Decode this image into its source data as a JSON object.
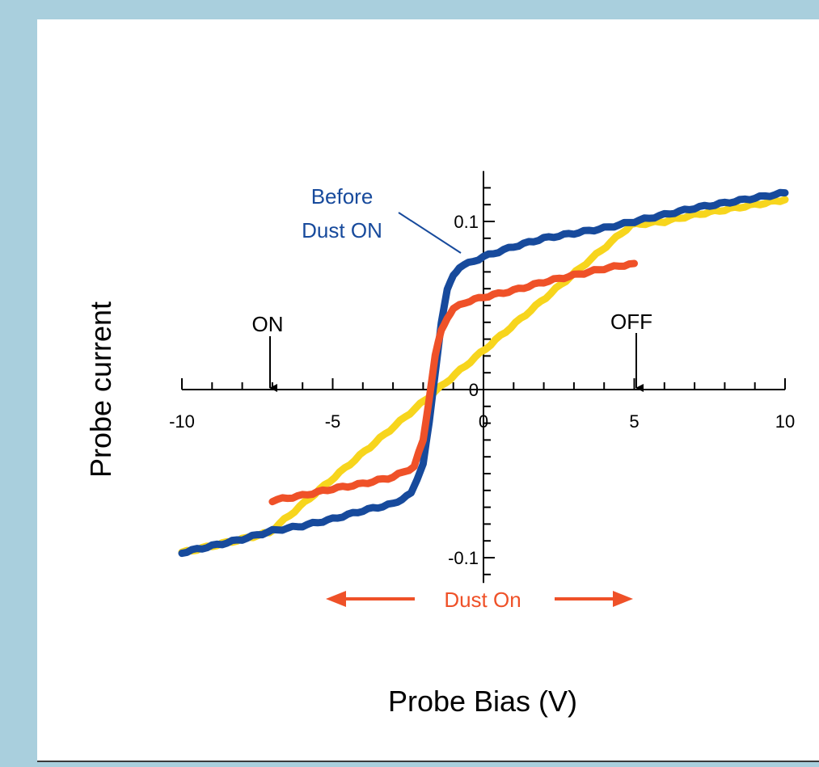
{
  "chart_data": {
    "type": "line",
    "xlabel": "Probe Bias (V)",
    "ylabel": "Probe current",
    "xlim": [
      -10,
      10
    ],
    "ylim": [
      -0.115,
      0.13
    ],
    "x_ticks": [
      -10,
      -5,
      0,
      5,
      10
    ],
    "x_tick_labels": [
      "-10",
      "-5",
      "0",
      "5",
      "10"
    ],
    "y_ticks": [
      -0.1,
      0,
      0.1
    ],
    "y_tick_labels": [
      "-0.1",
      "0",
      "0.1"
    ],
    "grid": false,
    "colors": {
      "blue": "#174a9c",
      "red": "#ef5128",
      "yellow": "#f7d51d"
    },
    "series": [
      {
        "color": "#f7d51d",
        "x": [
          -10,
          -9,
          -8,
          -7.1,
          4.9,
          6,
          7,
          8,
          9,
          10
        ],
        "y": [
          -0.097,
          -0.093,
          -0.089,
          -0.085,
          0.098,
          0.1,
          0.104,
          0.107,
          0.11,
          0.113
        ]
      },
      {
        "color": "#174a9c",
        "x": [
          -10,
          -9,
          -8,
          -7,
          -6,
          -5,
          -4,
          -3,
          -2.4,
          -2,
          -1.8,
          -1.6,
          -1.4,
          -1.2,
          -1,
          -0.8,
          -0.5,
          0,
          1,
          2,
          3,
          4,
          5,
          6,
          7,
          8,
          9,
          10
        ],
        "y": [
          -0.097,
          -0.093,
          -0.089,
          -0.084,
          -0.081,
          -0.077,
          -0.072,
          -0.068,
          -0.062,
          -0.044,
          -0.02,
          0.01,
          0.04,
          0.059,
          0.068,
          0.073,
          0.075,
          0.079,
          0.085,
          0.09,
          0.093,
          0.096,
          0.1,
          0.104,
          0.108,
          0.111,
          0.114,
          0.117
        ]
      },
      {
        "color": "#ef5128",
        "x": [
          -7,
          -6,
          -5,
          -4,
          -3,
          -2.3,
          -2,
          -1.8,
          -1.6,
          -1.4,
          -1.2,
          -1,
          -0.6,
          0,
          1,
          2,
          3,
          4,
          5
        ],
        "y": [
          -0.066,
          -0.063,
          -0.059,
          -0.056,
          -0.052,
          -0.046,
          -0.03,
          -0.005,
          0.02,
          0.035,
          0.043,
          0.048,
          0.052,
          0.055,
          0.059,
          0.064,
          0.068,
          0.072,
          0.075
        ]
      }
    ],
    "annotations": {
      "before": [
        "Before",
        "Dust ON"
      ],
      "on_marker": {
        "label": "ON",
        "x": -7.1
      },
      "off_marker": {
        "label": "OFF",
        "x": 5
      },
      "dust_on": {
        "label": "Dust On",
        "x_from": -10.3,
        "x_to": 9.8
      }
    }
  }
}
